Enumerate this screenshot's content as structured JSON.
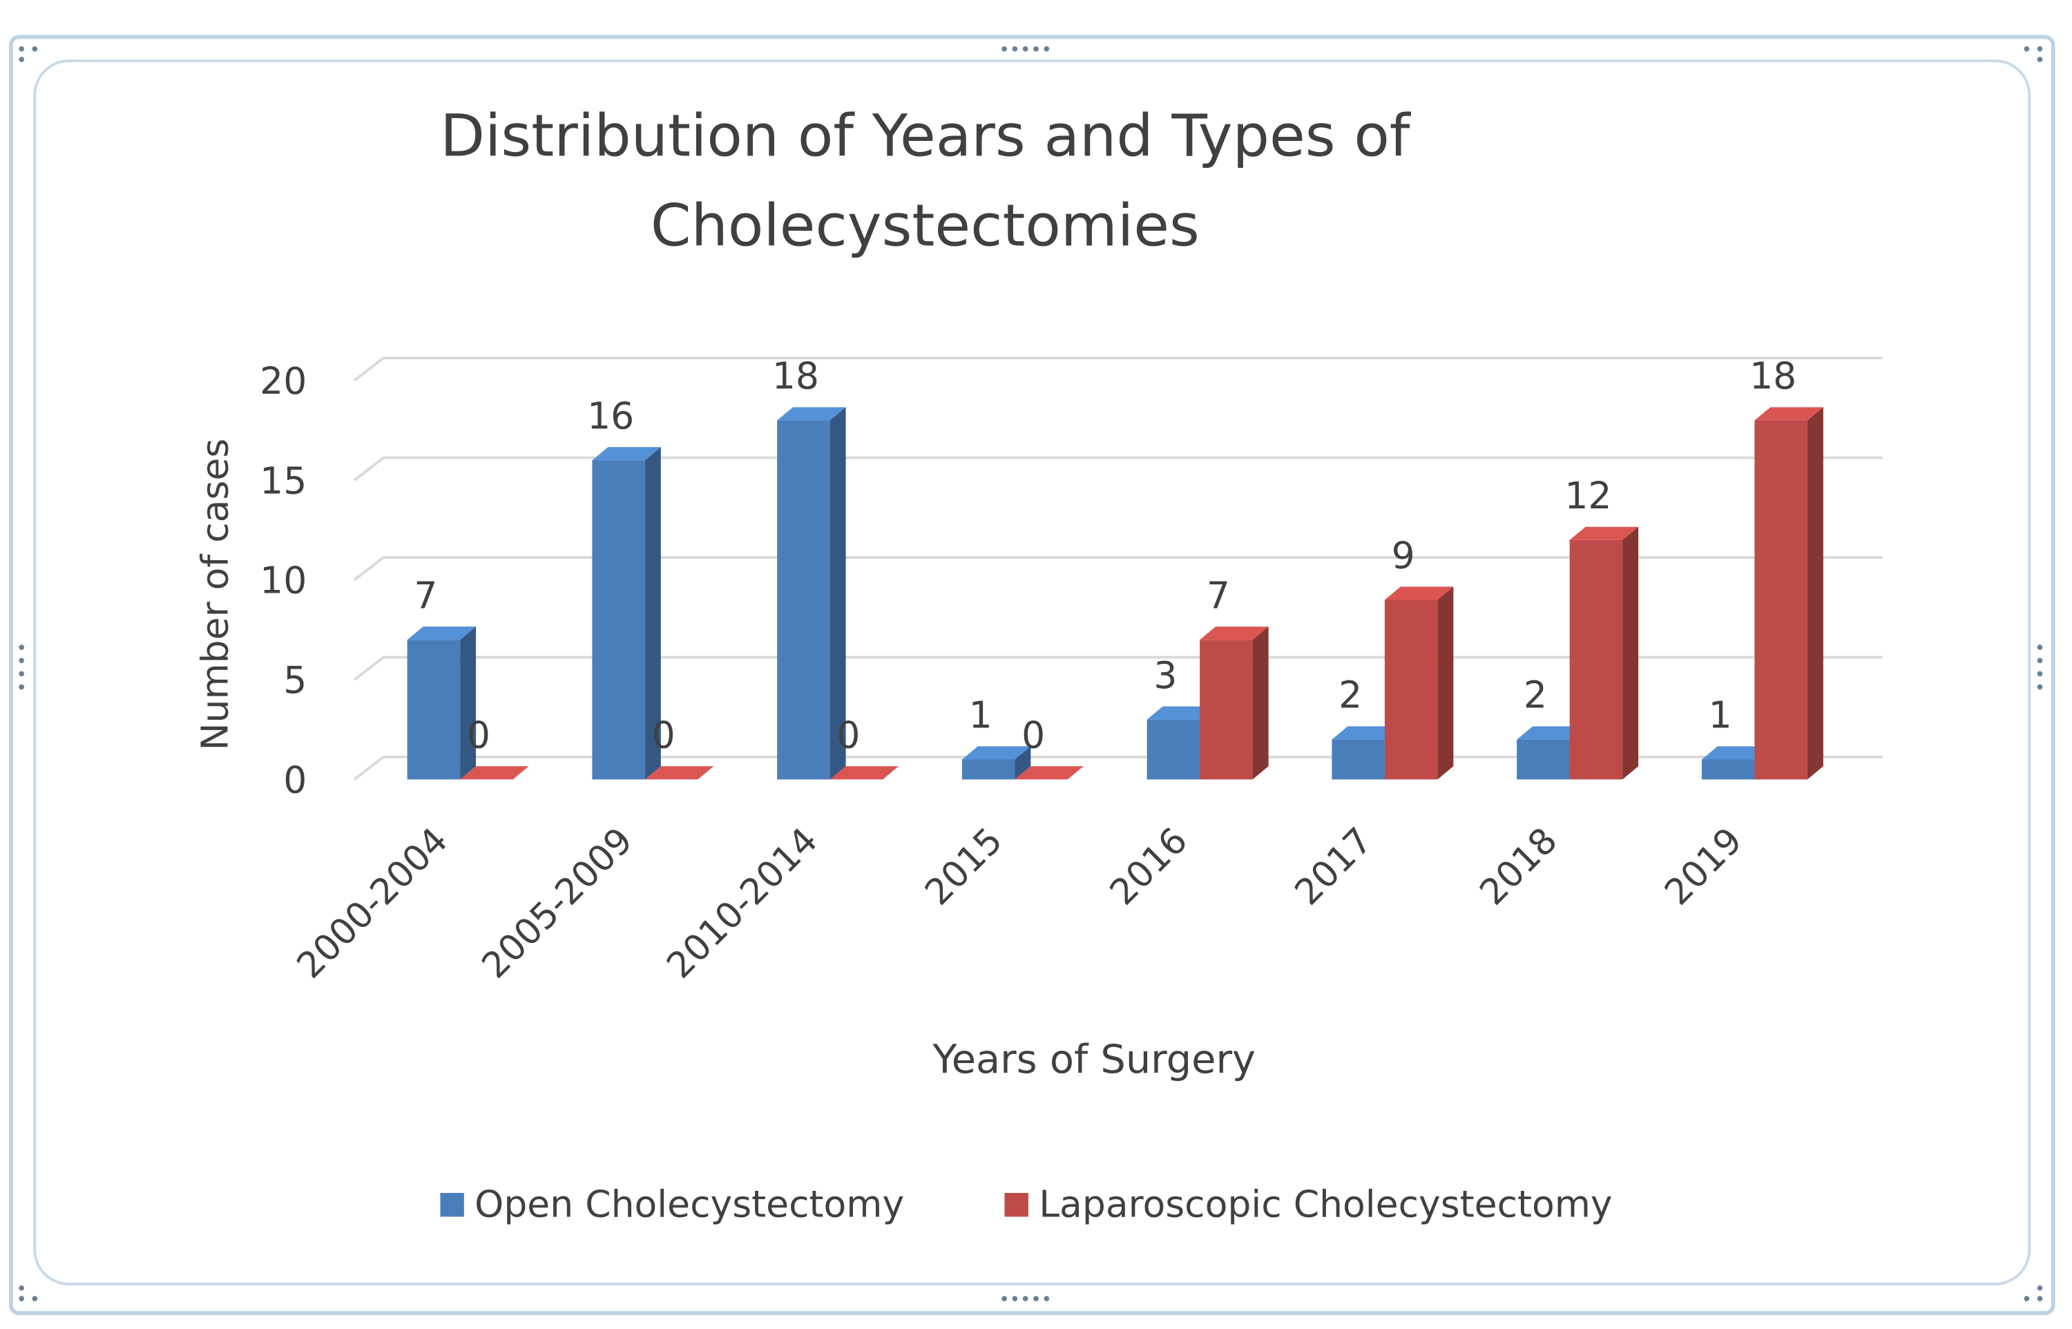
{
  "chart_data": {
    "type": "bar3d",
    "title": "Distribution of Years and Types of Cholecystectomies",
    "title_lines": [
      "Distribution of Years and Types of",
      "Cholecystectomies"
    ],
    "x_label": "Years of Surgery",
    "y_label": "Number of cases",
    "categories": [
      "2000-2004",
      "2005-2009",
      "2010-2014",
      "2015",
      "2016",
      "2017",
      "2018",
      "2019"
    ],
    "series": [
      {
        "name": "Open Cholecystectomy",
        "color": "#4a7ebb",
        "values": [
          7,
          16,
          18,
          1,
          3,
          2,
          2,
          1
        ]
      },
      {
        "name": "Laparoscopic Cholecystectomy",
        "color": "#be4b48",
        "values": [
          0,
          0,
          0,
          0,
          7,
          9,
          12,
          18
        ]
      }
    ],
    "ylim": [
      0,
      20
    ],
    "yticks": [
      0,
      5,
      10,
      15,
      20
    ],
    "grid": true,
    "legend": "bottom"
  }
}
